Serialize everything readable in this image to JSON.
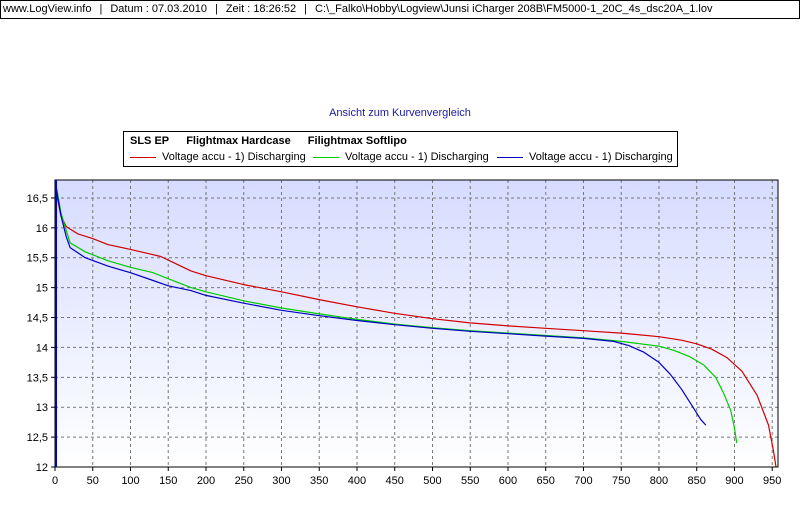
{
  "header": {
    "site": "www.LogView.info",
    "date": "Datum : 07.03.2010",
    "time": "Zeit : 18:26:52",
    "path": "C:\\_Falko\\Hobby\\Logview\\Junsi iCharger 208B\\FM5000-1_20C_4s_dsc20A_1.lov"
  },
  "chart_data": {
    "type": "line",
    "title": "",
    "subtitle": "Ansicht zum Kurvenvergleich",
    "xlabel": "",
    "ylabel": "",
    "xlim": [
      0,
      960
    ],
    "ylim": [
      12,
      16.8
    ],
    "xticks": [
      0,
      50,
      100,
      150,
      200,
      250,
      300,
      350,
      400,
      450,
      500,
      550,
      600,
      650,
      700,
      750,
      800,
      850,
      900,
      950
    ],
    "yticks": [
      12,
      12.5,
      13,
      13.5,
      14,
      14.5,
      15,
      15.5,
      16,
      16.5
    ],
    "xtick_labels": [
      "0",
      "50",
      "100",
      "150",
      "200",
      "250",
      "300",
      "350",
      "400",
      "450",
      "500",
      "550",
      "600",
      "650",
      "700",
      "750",
      "800",
      "850",
      "900",
      "950"
    ],
    "ytick_labels": [
      "12",
      "12,5",
      "13",
      "13,5",
      "14",
      "14,5",
      "15",
      "15,5",
      "16",
      "16,5"
    ],
    "grid": true,
    "legend_position": "top",
    "legend_groups": [
      "SLS EP",
      "Flightmax Hardcase",
      "Filightmax Softlipo"
    ],
    "series": [
      {
        "name": "Voltage accu - 1) Discharging",
        "color": "#d00000",
        "x": [
          0,
          3,
          8,
          15,
          30,
          50,
          70,
          100,
          120,
          140,
          160,
          180,
          200,
          250,
          300,
          350,
          400,
          450,
          500,
          550,
          600,
          650,
          700,
          750,
          800,
          830,
          850,
          870,
          890,
          910,
          930,
          945,
          952,
          955
        ],
        "y": [
          16.8,
          16.5,
          16.2,
          16.02,
          15.9,
          15.82,
          15.72,
          15.64,
          15.58,
          15.52,
          15.4,
          15.28,
          15.2,
          15.05,
          14.93,
          14.8,
          14.68,
          14.57,
          14.48,
          14.41,
          14.36,
          14.32,
          14.28,
          14.24,
          14.18,
          14.12,
          14.06,
          13.97,
          13.83,
          13.6,
          13.2,
          12.7,
          12.25,
          12.0
        ]
      },
      {
        "name": "Voltage accu - 1) Discharging",
        "color": "#00cc00",
        "x": [
          0,
          3,
          8,
          15,
          20,
          40,
          70,
          100,
          130,
          150,
          180,
          200,
          250,
          300,
          350,
          400,
          450,
          500,
          550,
          600,
          650,
          700,
          750,
          800,
          820,
          840,
          860,
          875,
          885,
          895,
          900,
          903
        ],
        "y": [
          16.8,
          16.6,
          16.25,
          15.95,
          15.75,
          15.6,
          15.45,
          15.34,
          15.25,
          15.15,
          15.0,
          14.93,
          14.78,
          14.66,
          14.56,
          14.47,
          14.39,
          14.33,
          14.28,
          14.24,
          14.2,
          14.16,
          14.1,
          14.02,
          13.95,
          13.85,
          13.7,
          13.5,
          13.25,
          12.95,
          12.65,
          12.4
        ]
      },
      {
        "name": "Voltage accu - 1) Discharging",
        "color": "#0000c0",
        "x": [
          0,
          3,
          8,
          15,
          20,
          40,
          70,
          100,
          130,
          150,
          180,
          200,
          250,
          300,
          350,
          400,
          450,
          500,
          550,
          600,
          650,
          700,
          740,
          760,
          780,
          800,
          815,
          830,
          845,
          855,
          862
        ],
        "y": [
          16.8,
          16.55,
          16.2,
          15.85,
          15.67,
          15.5,
          15.36,
          15.25,
          15.12,
          15.03,
          14.95,
          14.87,
          14.74,
          14.62,
          14.53,
          14.45,
          14.38,
          14.32,
          14.27,
          14.23,
          14.19,
          14.15,
          14.1,
          14.03,
          13.92,
          13.75,
          13.55,
          13.3,
          13.0,
          12.8,
          12.7
        ]
      }
    ]
  }
}
